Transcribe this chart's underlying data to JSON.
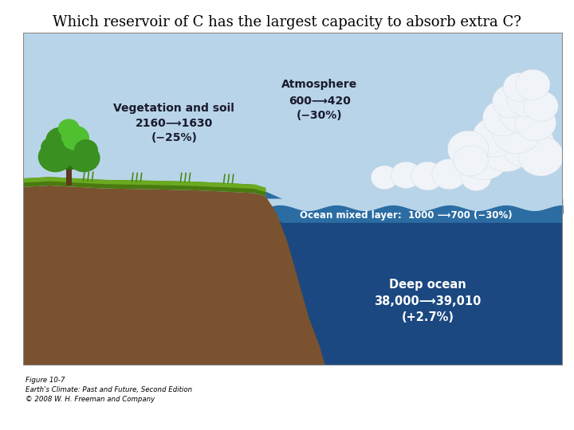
{
  "title": "Which reservoir of C has the largest capacity to absorb extra C?",
  "title_fontsize": 13,
  "background_color": "#ffffff",
  "figure_caption": "Figure 10-7\nEarth's Climate: Past and Future, Second Edition\n© 2008 W. H. Freeman and Company",
  "sky_color_top": "#b8d4e8",
  "sky_color_bot": "#9ec8e0",
  "ocean_mixed_color": "#2b6ca3",
  "ocean_deep_color": "#1b4880",
  "soil_color": "#7a5230",
  "grass_color_dark": "#4a7a10",
  "grass_color_light": "#6aaa20",
  "tree_trunk": "#5c3a1e",
  "tree_green_dark": "#2a6a18",
  "tree_green_mid": "#3a9020",
  "tree_green_light": "#50c030",
  "cloud_color": "#f0f4f8",
  "border_color": "#888888",
  "label_atm_line1": "Atmosphere",
  "label_atm_line2": "600⟶420",
  "label_atm_line3": "(−30%)",
  "label_veg_line1": "Vegetation and soil",
  "label_veg_line2": "2160⟶1630",
  "label_veg_line3": "(−25%)",
  "label_ocean_mixed": "Ocean mixed layer:  1000 ⟶700 (−30%)",
  "label_deep_line1": "Deep ocean",
  "label_deep_line2": "38,000⟶39,010",
  "label_deep_line3": "(+2.7%)"
}
